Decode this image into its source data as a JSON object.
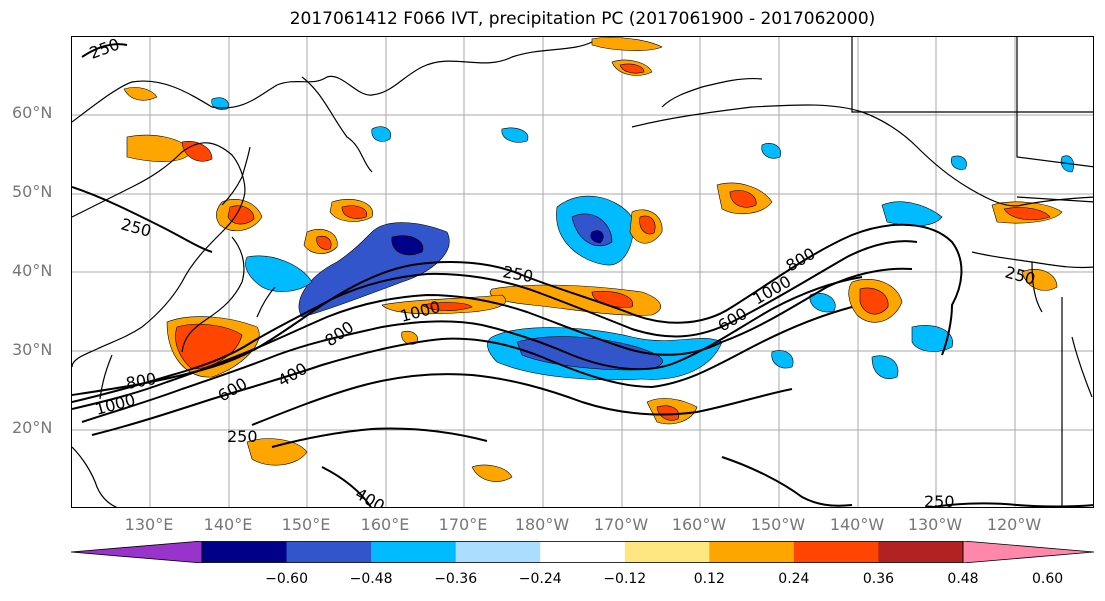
{
  "title": "2017061412 F066 IVT, precipitation PC (2017061900 - 2017062000)",
  "lat_labels": [
    "60°N",
    "50°N",
    "40°N",
    "30°N",
    "20°N"
  ],
  "lon_labels": [
    "130°E",
    "140°E",
    "150°E",
    "160°E",
    "170°E",
    "180°W",
    "170°W",
    "160°W",
    "150°W",
    "140°W",
    "130°W",
    "120°W"
  ],
  "contour_labels": [
    "250",
    "250",
    "250",
    "250",
    "250",
    "250",
    "400",
    "400",
    "600",
    "600",
    "800",
    "800",
    "800",
    "1000",
    "1000",
    "1000"
  ],
  "colorbar": {
    "colors": [
      "#9933cc",
      "#000088",
      "#3355cc",
      "#00bbff",
      "#aaddff",
      "#ffffff",
      "#ffe680",
      "#ffa500",
      "#ff4500",
      "#b22222",
      "#ff88aa"
    ],
    "ticks": [
      "−0.60",
      "−0.48",
      "−0.36",
      "−0.24",
      "−0.12",
      "0.12",
      "0.24",
      "0.36",
      "0.48",
      "0.60"
    ]
  }
}
